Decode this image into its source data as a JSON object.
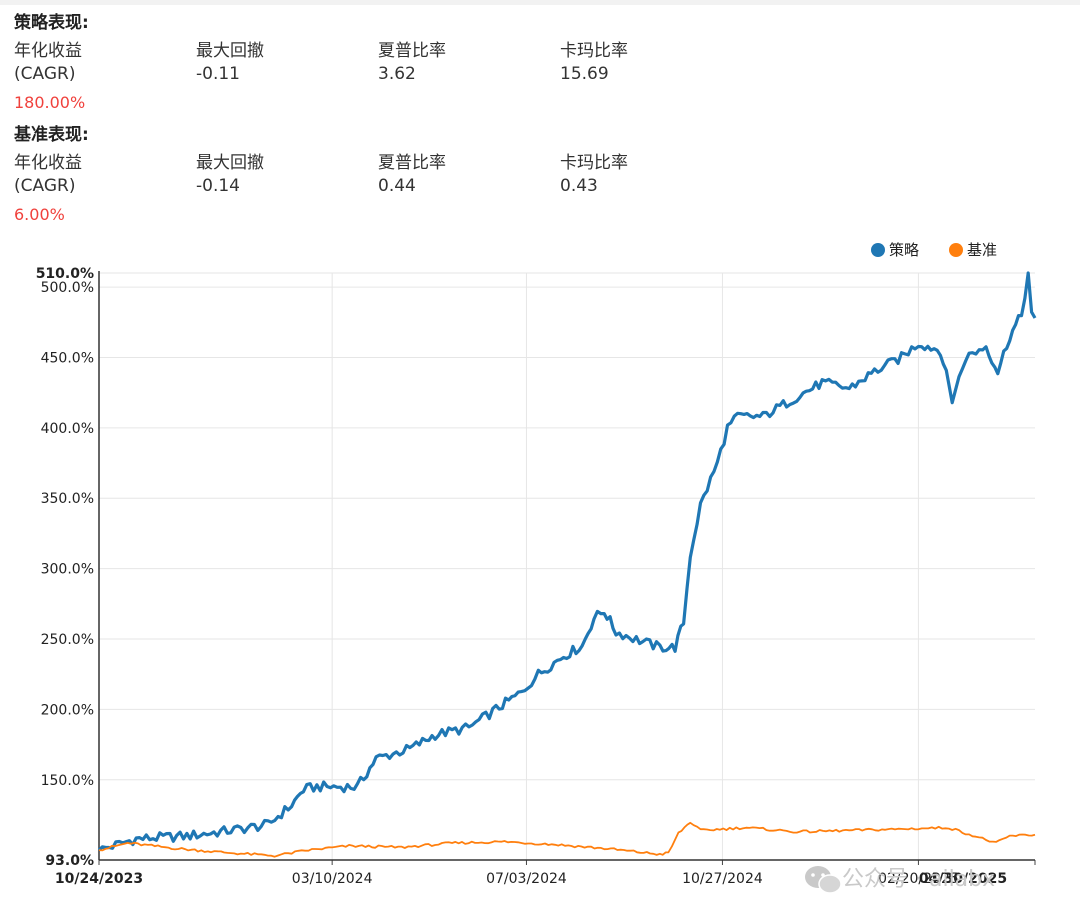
{
  "strategy": {
    "title": "策略表现:",
    "cagr_label_1": "年化收益",
    "cagr_label_2": "(CAGR)",
    "cagr_value": "180.00%",
    "mdd_label": "最大回撤",
    "mdd_value": "-0.11",
    "sharpe_label": "夏普比率",
    "sharpe_value": "3.62",
    "calmar_label": "卡玛比率",
    "calmar_value": "15.69"
  },
  "benchmark": {
    "title": "基准表现:",
    "cagr_label_1": "年化收益",
    "cagr_label_2": "(CAGR)",
    "cagr_value": "6.00%",
    "mdd_label": "最大回撤",
    "mdd_value": "-0.14",
    "sharpe_label": "夏普比率",
    "sharpe_value": "0.44",
    "calmar_label": "卡玛比率",
    "calmar_value": "0.43"
  },
  "watermark": "公众号 · ailabx",
  "chart_data": {
    "type": "line",
    "ylim": [
      93,
      510
    ],
    "y_ticks": [
      "510.0%",
      "500.0%",
      "450.0%",
      "400.0%",
      "350.0%",
      "300.0%",
      "250.0%",
      "200.0%",
      "150.0%",
      "93.0%"
    ],
    "x_ticks": [
      "10/24/2023",
      "03/10/2024",
      "07/03/2024",
      "10/27/2024",
      "02/20/2025",
      "04/30/2025"
    ],
    "grid": true,
    "legend": "top-right",
    "series": [
      {
        "name": "策略",
        "color": "#1f77b4",
        "points": [
          [
            "10/24/2023",
            100
          ],
          [
            "11/15/2023",
            108
          ],
          [
            "12/15/2023",
            110
          ],
          [
            "01/10/2024",
            114
          ],
          [
            "02/01/2024",
            118
          ],
          [
            "02/15/2024",
            132
          ],
          [
            "02/22/2024",
            143
          ],
          [
            "03/01/2024",
            145
          ],
          [
            "03/25/2024",
            145
          ],
          [
            "04/05/2024",
            165
          ],
          [
            "04/25/2024",
            172
          ],
          [
            "05/10/2024",
            182
          ],
          [
            "05/30/2024",
            187
          ],
          [
            "06/15/2024",
            200
          ],
          [
            "06/30/2024",
            212
          ],
          [
            "07/10/2024",
            225
          ],
          [
            "07/25/2024",
            238
          ],
          [
            "08/05/2024",
            245
          ],
          [
            "08/12/2024",
            265
          ],
          [
            "08/18/2024",
            270
          ],
          [
            "08/25/2024",
            255
          ],
          [
            "09/10/2024",
            248
          ],
          [
            "09/20/2024",
            244
          ],
          [
            "09/29/2024",
            244
          ],
          [
            "10/04/2024",
            262
          ],
          [
            "10/08/2024",
            310
          ],
          [
            "10/14/2024",
            345
          ],
          [
            "10/24/2024",
            375
          ],
          [
            "10/30/2024",
            400
          ],
          [
            "11/05/2024",
            408
          ],
          [
            "11/20/2024",
            408
          ],
          [
            "12/10/2024",
            422
          ],
          [
            "12/25/2024",
            432
          ],
          [
            "01/10/2025",
            428
          ],
          [
            "01/25/2025",
            440
          ],
          [
            "02/10/2025",
            450
          ],
          [
            "02/20/2025",
            460
          ],
          [
            "03/05/2025",
            455
          ],
          [
            "03/12/2025",
            420
          ],
          [
            "03/20/2025",
            450
          ],
          [
            "04/01/2025",
            458
          ],
          [
            "04/08/2025",
            440
          ],
          [
            "04/15/2025",
            465
          ],
          [
            "04/22/2025",
            480
          ],
          [
            "04/26/2025",
            510
          ],
          [
            "04/28/2025",
            480
          ],
          [
            "04/30/2025",
            478
          ]
        ]
      },
      {
        "name": "基准",
        "color": "#ff7f0e",
        "points": [
          [
            "10/24/2023",
            100
          ],
          [
            "11/10/2023",
            105
          ],
          [
            "12/10/2023",
            101
          ],
          [
            "01/10/2024",
            98
          ],
          [
            "02/05/2024",
            96
          ],
          [
            "02/25/2024",
            100
          ],
          [
            "03/20/2024",
            103
          ],
          [
            "04/20/2024",
            102
          ],
          [
            "05/20/2024",
            105
          ],
          [
            "06/20/2024",
            106
          ],
          [
            "07/20/2024",
            104
          ],
          [
            "08/20/2024",
            101
          ],
          [
            "09/20/2024",
            97
          ],
          [
            "09/25/2024",
            98
          ],
          [
            "10/01/2024",
            112
          ],
          [
            "10/08/2024",
            120
          ],
          [
            "10/14/2024",
            114
          ],
          [
            "11/10/2024",
            116
          ],
          [
            "12/10/2024",
            113
          ],
          [
            "01/10/2025",
            114
          ],
          [
            "02/10/2025",
            115
          ],
          [
            "03/10/2025",
            116
          ],
          [
            "04/07/2025",
            105
          ],
          [
            "04/15/2025",
            110
          ],
          [
            "04/30/2025",
            111
          ]
        ]
      }
    ]
  }
}
